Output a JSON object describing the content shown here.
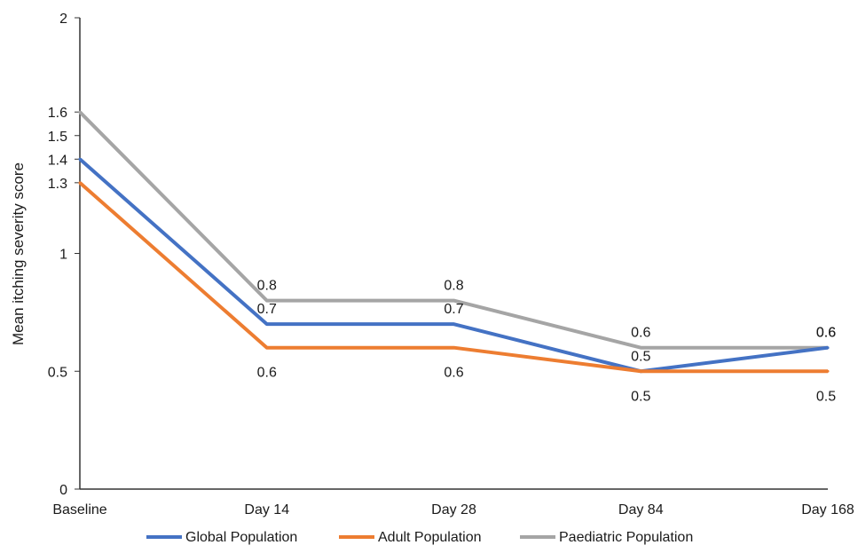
{
  "chart_data": {
    "type": "line",
    "title": "",
    "xlabel": "",
    "ylabel": "Mean  itching severity score",
    "ylim": [
      0,
      2
    ],
    "y_ticks": [
      "0",
      "0.5",
      "1",
      "1.3",
      "1.4",
      "1.5",
      "1.6",
      "2"
    ],
    "y_tick_values": [
      0,
      0.5,
      1,
      1.3,
      1.4,
      1.5,
      1.6,
      2
    ],
    "categories": [
      "Baseline",
      "Day 14",
      "Day 28",
      "Day 84",
      "Day 168"
    ],
    "grid": false,
    "legend_position": "bottom",
    "series": [
      {
        "name": "Global Population",
        "color": "#4472c4",
        "values": [
          1.4,
          0.7,
          0.7,
          0.5,
          0.6
        ],
        "labels": [
          "",
          "0.7",
          "0.7",
          "0.5",
          "0.6"
        ],
        "label_side": [
          "",
          "above",
          "above",
          "above",
          "above"
        ]
      },
      {
        "name": "Adult Population",
        "color": "#ed7d31",
        "values": [
          1.3,
          0.6,
          0.6,
          0.5,
          0.5
        ],
        "labels": [
          "",
          "0.6",
          "0.6",
          "0.5",
          "0.5"
        ],
        "label_side": [
          "",
          "below",
          "below",
          "below",
          "below"
        ]
      },
      {
        "name": "Paediatric Population",
        "color": "#a5a5a5",
        "values": [
          1.6,
          0.8,
          0.8,
          0.6,
          0.6
        ],
        "labels": [
          "",
          "0.8",
          "0.8",
          "0.6",
          "0.6"
        ],
        "label_side": [
          "",
          "above",
          "above",
          "above",
          "above"
        ]
      }
    ]
  }
}
